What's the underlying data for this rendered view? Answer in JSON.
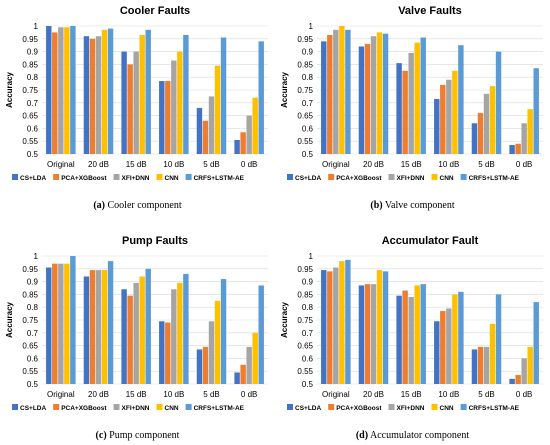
{
  "colors": {
    "series": [
      "#4472C4",
      "#ED7D31",
      "#A5A5A5",
      "#FFC000",
      "#5B9BD5"
    ],
    "grid": "#D9D9D9"
  },
  "chart_data": [
    {
      "type": "bar",
      "title": "Cooler Faults",
      "ylabel": "Accuracy",
      "ylim": [
        0.5,
        1.0
      ],
      "yticks": [
        "0.5",
        "0.55",
        "0.6",
        "0.65",
        "0.7",
        "0.75",
        "0.8",
        "0.85",
        "0.9",
        "0.95",
        "1"
      ],
      "categories": [
        "Original",
        "20 dB",
        "15 dB",
        "10 dB",
        "5 dB",
        "0 dB"
      ],
      "series": [
        {
          "name": "CS+LDA",
          "values": [
            1.0,
            0.96,
            0.9,
            0.785,
            0.68,
            0.555
          ]
        },
        {
          "name": "PCA+XGBoost",
          "values": [
            0.975,
            0.95,
            0.85,
            0.785,
            0.63,
            0.585
          ]
        },
        {
          "name": "XFI+DNN",
          "values": [
            0.995,
            0.96,
            0.9,
            0.865,
            0.725,
            0.65
          ]
        },
        {
          "name": "CNN",
          "values": [
            0.995,
            0.985,
            0.965,
            0.9,
            0.845,
            0.72
          ]
        },
        {
          "name": "CRFS+LSTM-AE",
          "values": [
            1.0,
            0.99,
            0.985,
            0.965,
            0.955,
            0.94
          ]
        }
      ],
      "grid": true,
      "legend": "bottom",
      "caption_label": "(a)",
      "caption_text": "Cooler component"
    },
    {
      "type": "bar",
      "title": "Valve Faults",
      "ylabel": "Accuracy",
      "ylim": [
        0.5,
        1.0
      ],
      "yticks": [
        "0.5",
        "0.55",
        "0.6",
        "0.65",
        "0.7",
        "0.75",
        "0.8",
        "0.85",
        "0.9",
        "0.95",
        "1"
      ],
      "categories": [
        "Original",
        "20 dB",
        "15 dB",
        "10 dB",
        "5 dB",
        "0 dB"
      ],
      "series": [
        {
          "name": "CS+LDA",
          "values": [
            0.94,
            0.92,
            0.855,
            0.715,
            0.62,
            0.535
          ]
        },
        {
          "name": "PCA+XGBoost",
          "values": [
            0.965,
            0.93,
            0.825,
            0.77,
            0.66,
            0.54
          ]
        },
        {
          "name": "XFI+DNN",
          "values": [
            0.985,
            0.96,
            0.895,
            0.79,
            0.735,
            0.62
          ]
        },
        {
          "name": "CNN",
          "values": [
            1.0,
            0.975,
            0.935,
            0.825,
            0.765,
            0.675
          ]
        },
        {
          "name": "CRFS+LSTM-AE",
          "values": [
            0.985,
            0.97,
            0.955,
            0.925,
            0.9,
            0.835
          ]
        }
      ],
      "grid": true,
      "legend": "bottom",
      "caption_label": "(b)",
      "caption_text": "Valve component"
    },
    {
      "type": "bar",
      "title": "Pump Faults",
      "ylabel": "Accuracy",
      "ylim": [
        0.5,
        1.0
      ],
      "yticks": [
        "0.5",
        "0.55",
        "0.6",
        "0.65",
        "0.7",
        "0.75",
        "0.8",
        "0.85",
        "0.9",
        "0.95",
        "1"
      ],
      "categories": [
        "Original",
        "20 dB",
        "15 dB",
        "10 dB",
        "5 dB",
        "0 dB"
      ],
      "series": [
        {
          "name": "CS+LDA",
          "values": [
            0.955,
            0.92,
            0.87,
            0.745,
            0.635,
            0.545
          ]
        },
        {
          "name": "PCA+XGBoost",
          "values": [
            0.97,
            0.945,
            0.845,
            0.74,
            0.645,
            0.575
          ]
        },
        {
          "name": "XFI+DNN",
          "values": [
            0.97,
            0.945,
            0.895,
            0.87,
            0.745,
            0.645
          ]
        },
        {
          "name": "CNN",
          "values": [
            0.97,
            0.945,
            0.92,
            0.895,
            0.825,
            0.7
          ]
        },
        {
          "name": "CRFS+LSTM-AE",
          "values": [
            1.0,
            0.98,
            0.95,
            0.93,
            0.91,
            0.885
          ]
        }
      ],
      "grid": true,
      "legend": "bottom",
      "caption_label": "(c)",
      "caption_text": "Pump component"
    },
    {
      "type": "bar",
      "title": "Accumulator Fault",
      "ylabel": "Accuracy",
      "ylim": [
        0.5,
        1.0
      ],
      "yticks": [
        "0.5",
        "0.55",
        "0.6",
        "0.65",
        "0.7",
        "0.75",
        "0.8",
        "0.85",
        "0.9",
        "0.95",
        "1"
      ],
      "categories": [
        "Original",
        "20 dB",
        "15 dB",
        "10 dB",
        "5 dB",
        "0 dB"
      ],
      "series": [
        {
          "name": "CS+LDA",
          "values": [
            0.945,
            0.885,
            0.845,
            0.745,
            0.635,
            0.52
          ]
        },
        {
          "name": "PCA+XGBoost",
          "values": [
            0.94,
            0.89,
            0.865,
            0.785,
            0.645,
            0.535
          ]
        },
        {
          "name": "XFI+DNN",
          "values": [
            0.955,
            0.89,
            0.84,
            0.795,
            0.645,
            0.6
          ]
        },
        {
          "name": "CNN",
          "values": [
            0.98,
            0.945,
            0.885,
            0.85,
            0.735,
            0.645
          ]
        },
        {
          "name": "CRFS+LSTM-AE",
          "values": [
            0.985,
            0.94,
            0.89,
            0.86,
            0.85,
            0.82
          ]
        }
      ],
      "grid": true,
      "legend": "bottom",
      "caption_label": "(d)",
      "caption_text": "Accumulator component"
    }
  ]
}
